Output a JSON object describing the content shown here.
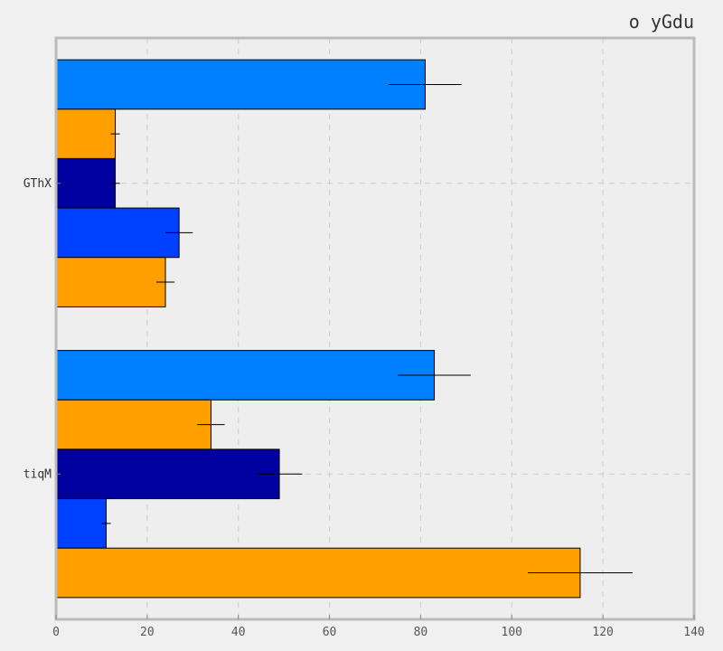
{
  "chart_data": {
    "type": "bar",
    "orientation": "horizontal",
    "title": "o yGdu",
    "xlabel": "",
    "ylabel": "",
    "xlim": [
      0,
      140
    ],
    "x_ticks": [
      "0",
      "20",
      "40",
      "60",
      "80",
      "100",
      "120",
      "140"
    ],
    "grid": true,
    "categories": [
      "GThX",
      "tiqM"
    ],
    "series": [
      {
        "color": "#0080ff",
        "values": [
          81,
          83
        ],
        "errors": [
          8,
          8
        ]
      },
      {
        "color": "#ffa000",
        "values": [
          13,
          34
        ],
        "errors": [
          1,
          3
        ]
      },
      {
        "color": "#0000a0",
        "values": [
          13,
          49
        ],
        "errors": [
          1,
          5
        ]
      },
      {
        "color": "#0040ff",
        "values": [
          27,
          11
        ],
        "errors": [
          3,
          1
        ]
      },
      {
        "color": "#ffa000",
        "values": [
          24,
          115
        ],
        "errors": [
          2,
          11.5
        ]
      }
    ]
  },
  "colors": {
    "background": "#f0f0f0",
    "plot_background": "#eeeeee",
    "frame": "#bbbbbb",
    "grid": "#cccccc"
  }
}
